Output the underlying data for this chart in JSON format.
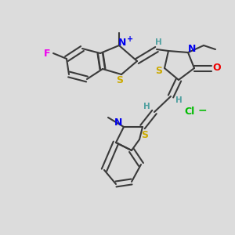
{
  "bg_color": "#dcdcdc",
  "atom_colors": {
    "C": "#3a3a3a",
    "N": "#0000ee",
    "S": "#ccaa00",
    "O": "#ee0000",
    "F": "#ee00ee",
    "H": "#50a0a0",
    "Cl": "#00bb00",
    "plus": "#0000ee"
  },
  "bond_color": "#3a3a3a",
  "bond_width": 1.5,
  "dbo": 0.012,
  "fs": 8.5
}
